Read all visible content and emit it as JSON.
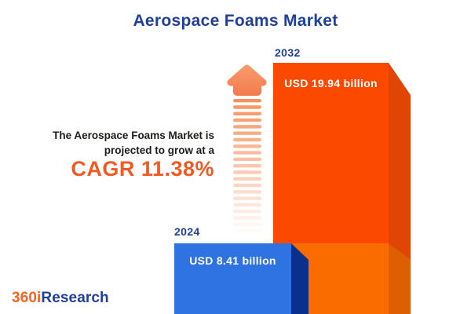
{
  "title": "Aerospace Foams Market",
  "description": {
    "line1": "The Aerospace Foams Market is",
    "line2": "projected to grow at a",
    "cagr": "CAGR 11.38%"
  },
  "logo": {
    "prefix": "360i",
    "suffix": "Research"
  },
  "colors": {
    "title_blue": "#21409A",
    "cagr_orange": "#F15A22",
    "bar_2024_front": "#2F72E2",
    "bar_2024_side": "#08308C",
    "bar_2032_front_top": "#FB4A00",
    "bar_2032_front_bottom": "#FA6C00",
    "bar_2032_side_top": "#E04503",
    "bar_2032_side_bottom": "#DD5F00",
    "arrow_orange_light": "#F99E71",
    "arrow_orange_dark": "#F2794A",
    "label_white": "#FFFFFF",
    "text_dark": "#1D1D1B",
    "logo_orange": "#F26522",
    "logo_blue": "#21409A",
    "background": "#FFFFFF"
  },
  "chart_data": {
    "type": "bar",
    "title": "Aerospace Foams Market",
    "categories": [
      "2024",
      "2032"
    ],
    "values": [
      8.41,
      19.94
    ],
    "value_labels": [
      "USD 8.41 billion",
      "USD 19.94 billion"
    ],
    "unit": "USD billion",
    "cagr_percent": 11.38,
    "annotation": "The Aerospace Foams Market is projected to grow at a CAGR 11.38%",
    "bar_colors": [
      "#2F72E2",
      "#FB4A00"
    ],
    "style": "3d-boxes",
    "grid": false,
    "legend": "none",
    "axes": "none"
  }
}
